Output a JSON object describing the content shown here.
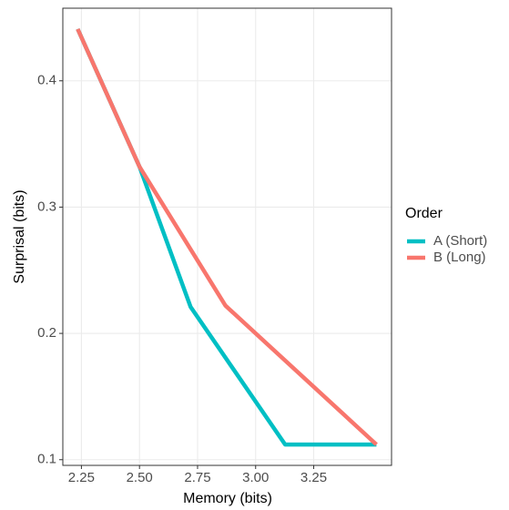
{
  "chart_data": {
    "type": "line",
    "x_label": "Memory (bits)",
    "y_label": "Surprisal (bits)",
    "legend_title": "Order",
    "legend": "right",
    "grid": true,
    "xlim": [
      2.17,
      3.585
    ],
    "ylim": [
      0.0955,
      0.4575
    ],
    "xticks": [
      2.25,
      {
        "value": 2.5,
        "label": "2.50"
      },
      2.75,
      {
        "value": 3,
        "label": "3.00"
      },
      3.25
    ],
    "yticks": [
      0.1,
      0.2,
      0.3,
      0.4
    ],
    "series": [
      {
        "name": "A (Short)",
        "color": "#00BFC4",
        "x": [
          2.234,
          2.5,
          2.72,
          3.127,
          3.52
        ],
        "values": [
          0.441,
          0.332,
          0.221,
          0.112,
          0.112
        ]
      },
      {
        "name": "B (Long)",
        "color": "#F8766D",
        "x": [
          2.234,
          2.5,
          2.87,
          3.52
        ],
        "values": [
          0.441,
          0.332,
          0.222,
          0.112
        ]
      }
    ]
  }
}
